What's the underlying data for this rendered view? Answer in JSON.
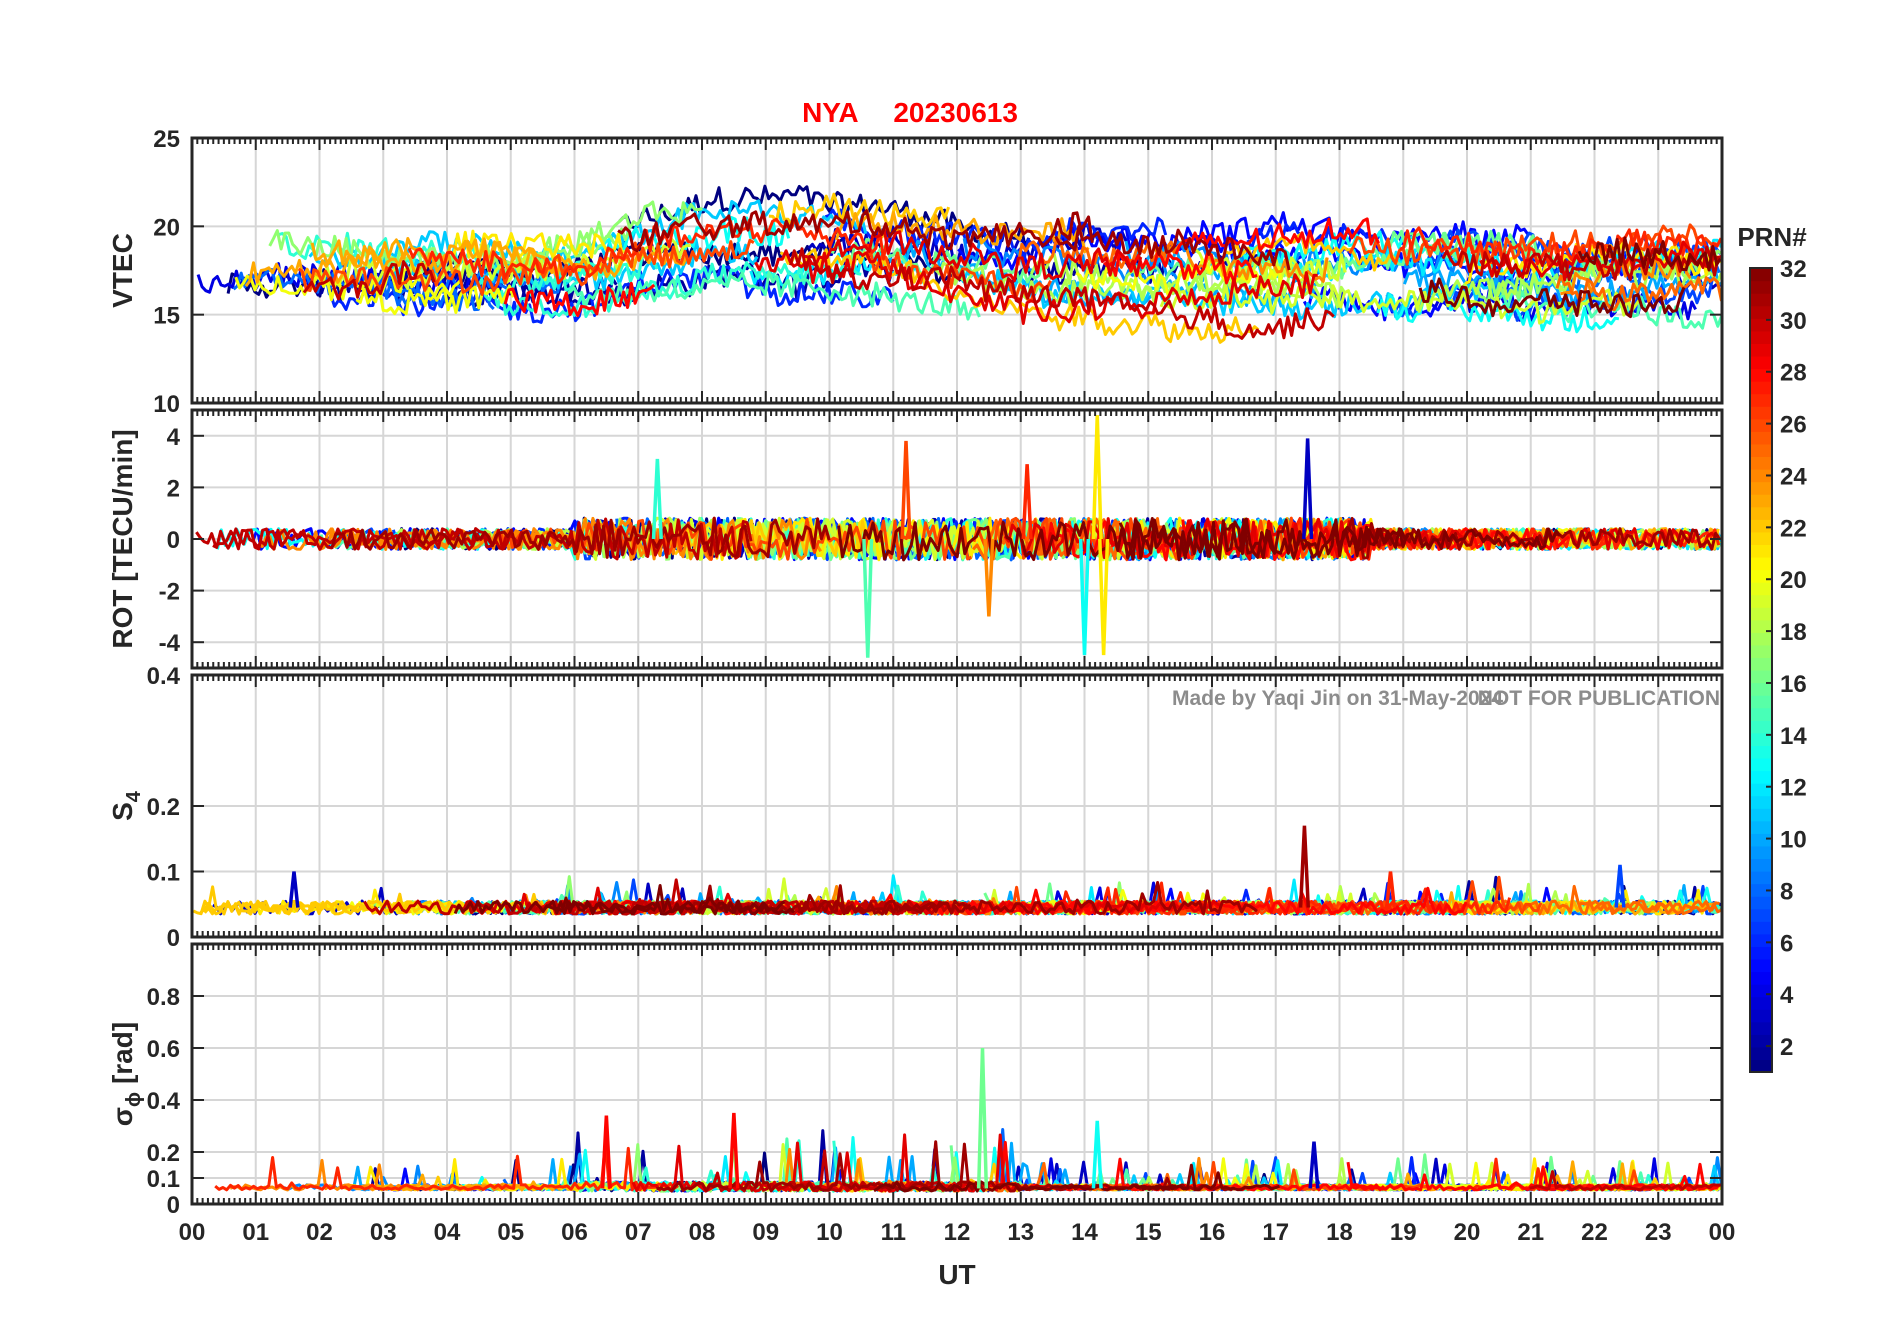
{
  "figure": {
    "station": "NYA",
    "date": "20230613",
    "watermark_author": "Made by Yaqi Jin on 31-May-2024",
    "watermark_notice": "NOT FOR PUBLICATION",
    "title_color": "#ff0000",
    "watermark_color": "#8c8c8c"
  },
  "chart_data": [
    {
      "type": "line",
      "id": "vtec",
      "ylabel": "VTEC",
      "ylim": [
        10,
        25
      ],
      "yticks": [
        10,
        15,
        20,
        25
      ],
      "grid": true,
      "baseline": 17.5,
      "noise": 1.4,
      "base_shape": "vtec",
      "trace_note": "one trace per PRN 1-32, coloured by PRN (jet colormap)"
    },
    {
      "type": "line",
      "id": "rot",
      "ylabel": "ROT [TECU/min]",
      "ylim": [
        -5,
        5
      ],
      "yticks": [
        -4,
        -2,
        0,
        2,
        4
      ],
      "grid": true,
      "baseline": 0,
      "noise": 0.45,
      "base_shape": "rot"
    },
    {
      "type": "line",
      "id": "s4",
      "ylabel_base": "S",
      "ylabel_sub": "4",
      "ylim": [
        0,
        0.4
      ],
      "yticks": [
        0,
        0.1,
        0.2,
        0.4
      ],
      "ytick_labels": [
        "0",
        "0.1",
        "0.2",
        "0.4"
      ],
      "grid": true,
      "baseline": 0.045,
      "noise": 0.01,
      "base_shape": "s4"
    },
    {
      "type": "line",
      "id": "sigphi",
      "ylabel_base": "σ",
      "ylabel_sub": "ϕ",
      "ylabel_suffix": "[rad]",
      "ylim": [
        0,
        1
      ],
      "yticks": [
        0,
        0.1,
        0.2,
        0.4,
        0.6,
        0.8
      ],
      "ytick_labels": [
        "0",
        "0.1",
        "0.2",
        "0.4",
        "0.6",
        "0.8"
      ],
      "grid": true,
      "baseline": 0.06,
      "noise": 0.02,
      "base_shape": "sigphi"
    }
  ],
  "xaxis": {
    "label": "UT",
    "range": [
      0,
      24
    ],
    "ticks": [
      "00",
      "01",
      "02",
      "03",
      "04",
      "05",
      "06",
      "07",
      "08",
      "09",
      "10",
      "11",
      "12",
      "13",
      "14",
      "15",
      "16",
      "17",
      "18",
      "19",
      "20",
      "21",
      "22",
      "23",
      "00"
    ]
  },
  "colorbar": {
    "label": "PRN#",
    "range": [
      1,
      32
    ],
    "ticks": [
      "2",
      "4",
      "6",
      "8",
      "10",
      "12",
      "14",
      "16",
      "18",
      "20",
      "22",
      "24",
      "26",
      "28",
      "30",
      "32"
    ],
    "colormap": "jet"
  },
  "spikes": {
    "rot": [
      {
        "t": 11.2,
        "v": 3.8,
        "prn": 26
      },
      {
        "t": 14.2,
        "v": 4.8,
        "prn": 21
      },
      {
        "t": 14.3,
        "v": -4.5,
        "prn": 21
      },
      {
        "t": 10.6,
        "v": -4.6,
        "prn": 15
      },
      {
        "t": 14.0,
        "v": -4.5,
        "prn": 13
      },
      {
        "t": 17.5,
        "v": 3.9,
        "prn": 3
      },
      {
        "t": 12.5,
        "v": -3.0,
        "prn": 24
      },
      {
        "t": 7.3,
        "v": 3.1,
        "prn": 14
      },
      {
        "t": 13.1,
        "v": 2.9,
        "prn": 27
      }
    ],
    "s4": [
      {
        "t": 17.45,
        "v": 0.17,
        "prn": 31
      },
      {
        "t": 1.6,
        "v": 0.1,
        "prn": 3
      },
      {
        "t": 18.8,
        "v": 0.1,
        "prn": 27
      },
      {
        "t": 22.4,
        "v": 0.11,
        "prn": 7
      }
    ],
    "sigphi": [
      {
        "t": 12.4,
        "v": 0.6,
        "prn": 16
      },
      {
        "t": 6.5,
        "v": 0.34,
        "prn": 28
      },
      {
        "t": 8.5,
        "v": 0.35,
        "prn": 28
      },
      {
        "t": 14.2,
        "v": 0.32,
        "prn": 13
      },
      {
        "t": 17.6,
        "v": 0.24,
        "prn": 3
      }
    ]
  }
}
